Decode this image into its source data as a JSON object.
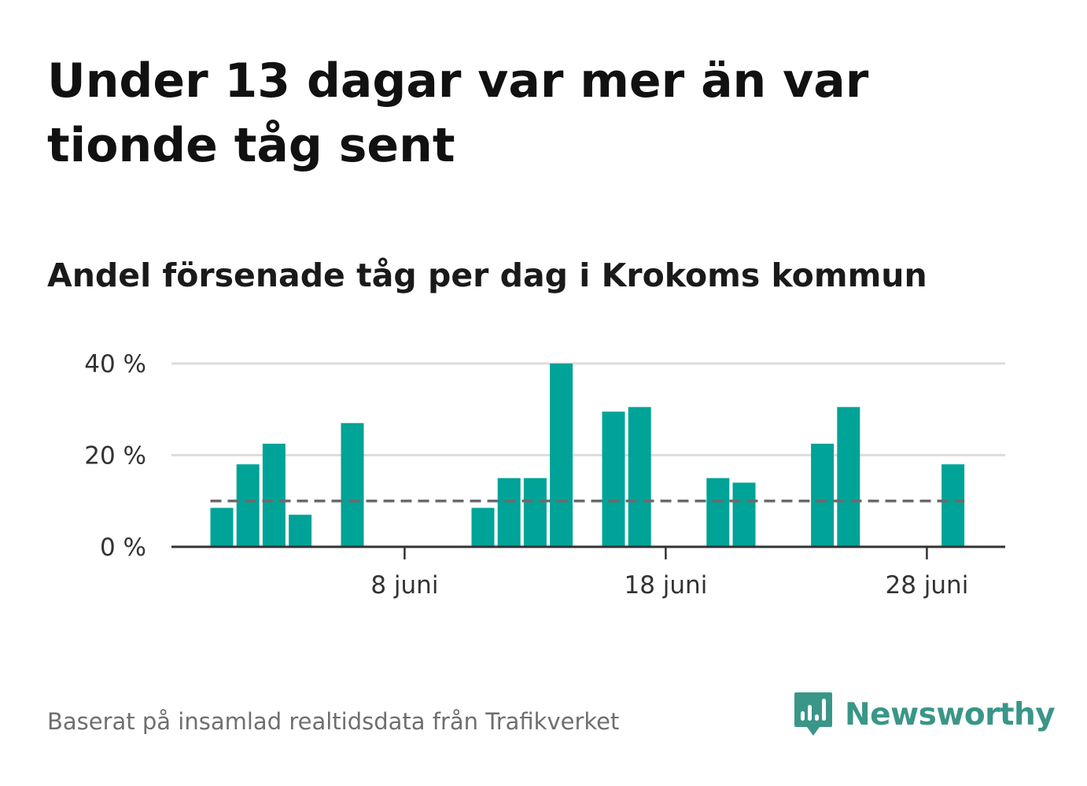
{
  "title": "Under 13 dagar var mer än var tionde tåg sent",
  "subtitle": "Andel försenade tåg per dag i Krokoms kommun",
  "footer": "Baserat på insamlad realtidsdata från Trafikverket",
  "brand": {
    "name": "Newsworthy",
    "color": "#3a9688"
  },
  "colors": {
    "bar": "#00a397",
    "grid": "#dddddd",
    "axis": "#333333",
    "reference_line": "#6b6b6b"
  },
  "chart_data": {
    "type": "bar",
    "x": [
      "1 juni",
      "2 juni",
      "3 juni",
      "4 juni",
      "5 juni",
      "6 juni",
      "7 juni",
      "8 juni",
      "9 juni",
      "10 juni",
      "11 juni",
      "12 juni",
      "13 juni",
      "14 juni",
      "15 juni",
      "16 juni",
      "17 juni",
      "18 juni",
      "19 juni",
      "20 juni",
      "21 juni",
      "22 juni",
      "23 juni",
      "24 juni",
      "25 juni",
      "26 juni",
      "27 juni",
      "28 juni",
      "29 juni"
    ],
    "values": [
      8.5,
      18,
      22.5,
      7,
      0,
      27,
      0,
      0,
      0,
      0,
      8.5,
      15,
      15,
      40,
      0,
      29.5,
      30.5,
      0,
      0,
      15,
      14,
      0,
      0,
      22.5,
      30.5,
      0,
      0,
      0,
      18
    ],
    "reference_line": 10,
    "ylim": [
      0,
      40
    ],
    "y_ticks": [
      0,
      20,
      40
    ],
    "y_tick_labels": [
      "0 %",
      "20 %",
      "40 %"
    ],
    "x_ticks": [
      "8 juni",
      "18 juni",
      "28 juni"
    ],
    "grid": true,
    "xlabel": "",
    "ylabel": ""
  }
}
